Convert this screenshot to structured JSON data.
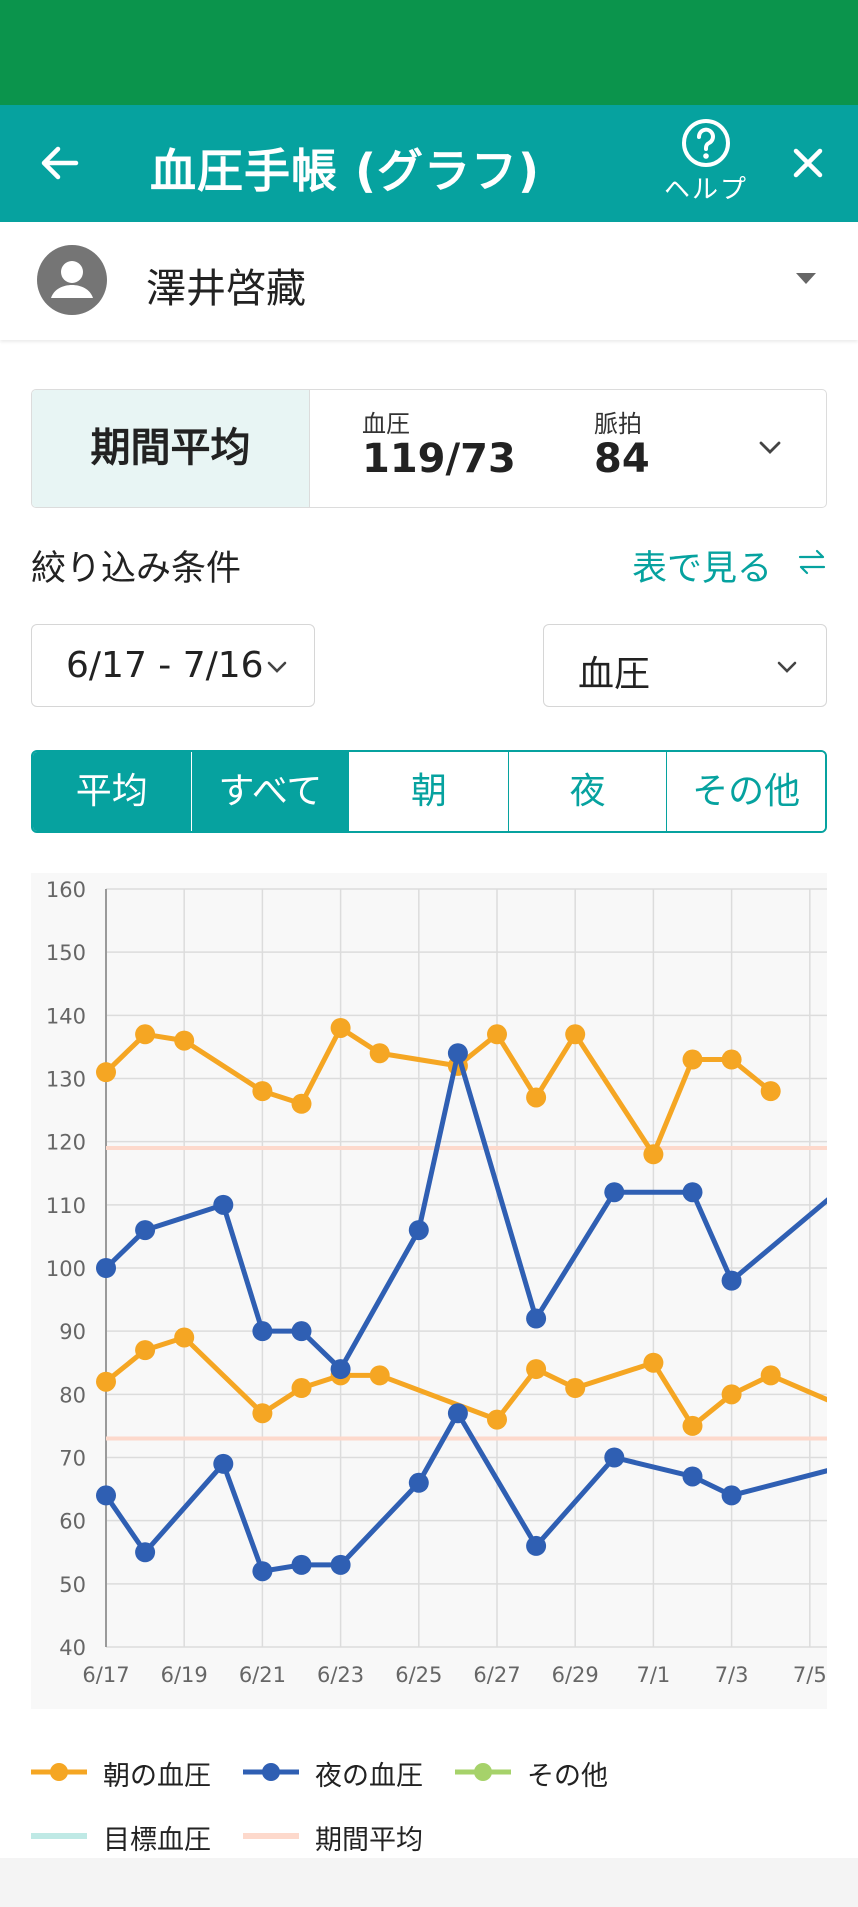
{
  "app_bar": {
    "title": "血圧手帳 (グラフ)",
    "help_label": "ヘルプ",
    "back_icon": "arrow-left-icon",
    "help_icon": "question-circle-icon",
    "close_icon": "close-icon",
    "color": "#06a29f"
  },
  "status_bar_color": "#0b944c",
  "user": {
    "name": "澤井啓藏",
    "avatar_icon": "person-avatar-icon"
  },
  "summary": {
    "period_label": "期間平均",
    "bp_label": "血圧",
    "bp_value": "119/73",
    "pulse_label": "脈拍",
    "pulse_value": "84"
  },
  "filter": {
    "label": "絞り込み条件",
    "table_link": "表で見る",
    "date_range": "6/17 - 7/16",
    "metric": "血圧"
  },
  "segments": [
    {
      "label": "平均",
      "active": true
    },
    {
      "label": "すべて",
      "active": true
    },
    {
      "label": "朝",
      "active": false
    },
    {
      "label": "夜",
      "active": false
    },
    {
      "label": "その他",
      "active": false
    }
  ],
  "chart_data": {
    "type": "line",
    "ylim": [
      40,
      160
    ],
    "yticks": [
      40,
      50,
      60,
      70,
      80,
      90,
      100,
      110,
      120,
      130,
      140,
      150,
      160
    ],
    "xticks": [
      "6/17",
      "6/19",
      "6/21",
      "6/23",
      "6/25",
      "6/27",
      "6/29",
      "7/1",
      "7/3",
      "7/5"
    ],
    "grid": true,
    "legend_position": "bottom",
    "series": [
      {
        "name": "朝の血圧",
        "role": "systolic",
        "color": "#f5a623",
        "x": [
          0,
          1,
          2,
          4,
          5,
          6,
          7,
          9,
          10,
          11,
          12,
          14,
          15,
          16,
          17,
          18,
          19.5
        ],
        "values": [
          131,
          137,
          136,
          128,
          126,
          138,
          134,
          132,
          137,
          127,
          137,
          118,
          133,
          133,
          128,
          null,
          null
        ]
      },
      {
        "name": "朝の血圧",
        "role": "diastolic",
        "color": "#f5a623",
        "x": [
          0,
          1,
          2,
          4,
          5,
          6,
          7,
          10,
          11,
          12,
          14,
          15,
          16,
          17,
          18.5
        ],
        "values": [
          82,
          87,
          89,
          77,
          81,
          83,
          83,
          76,
          84,
          81,
          85,
          75,
          80,
          83,
          79
        ]
      },
      {
        "name": "夜の血圧",
        "role": "systolic",
        "color": "#2f5fb3",
        "x": [
          0,
          1,
          3,
          4,
          5,
          6,
          8,
          9,
          11,
          13,
          15,
          16,
          18.5
        ],
        "values": [
          100,
          106,
          110,
          90,
          90,
          84,
          106,
          134,
          92,
          112,
          112,
          98,
          111
        ]
      },
      {
        "name": "夜の血圧",
        "role": "diastolic",
        "color": "#2f5fb3",
        "x": [
          0,
          1,
          3,
          4,
          5,
          6,
          8,
          9,
          11,
          13,
          15,
          16,
          18.5
        ],
        "values": [
          64,
          55,
          69,
          52,
          53,
          53,
          66,
          77,
          56,
          70,
          67,
          64,
          68
        ]
      },
      {
        "name": "期間平均",
        "role": "average-systolic",
        "color": "#fdd9cc",
        "values": [
          119
        ]
      },
      {
        "name": "期間平均",
        "role": "average-diastolic",
        "color": "#fdd9cc",
        "values": [
          73
        ]
      }
    ]
  },
  "legend": [
    {
      "label": "朝の血圧",
      "color": "#f5a623",
      "marker": true
    },
    {
      "label": "夜の血圧",
      "color": "#2f5fb3",
      "marker": true
    },
    {
      "label": "その他",
      "color": "#a6d26a",
      "marker": true
    },
    {
      "label": "目標血圧",
      "color": "#bfe9e5",
      "marker": false
    },
    {
      "label": "期間平均",
      "color": "#fdd9cc",
      "marker": false
    }
  ]
}
